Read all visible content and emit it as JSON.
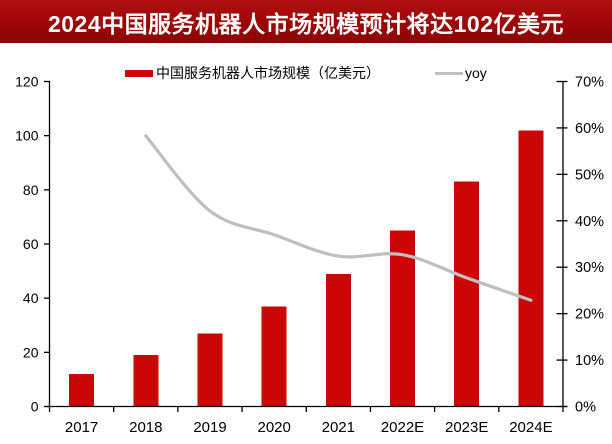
{
  "banner": {
    "title": "2024中国服务机器人市场规模预计将达102亿美元"
  },
  "legend": {
    "items": [
      {
        "label": "中国服务机器人市场规模（亿美元）",
        "swatch": "bar-swatch",
        "color": "#CC0606"
      },
      {
        "label": "yoy",
        "swatch": "line-swatch",
        "color": "#BFBFBF"
      }
    ]
  },
  "chart_data": {
    "type": "combo",
    "title": "2024中国服务机器人市场规模预计将达102亿美元",
    "categories": [
      "2017",
      "2018",
      "2019",
      "2020",
      "2021",
      "2022E",
      "2023E",
      "2024E"
    ],
    "series": [
      {
        "name": "中国服务机器人市场规模（亿美元）",
        "type": "bar",
        "axis": "left",
        "color": "#CC0606",
        "values": [
          12,
          19,
          27,
          37,
          49,
          65,
          83,
          102
        ]
      },
      {
        "name": "yoy",
        "type": "line",
        "axis": "right",
        "color": "#BFBFBF",
        "unit": "%",
        "values": [
          null,
          58.3,
          42.1,
          37.0,
          32.4,
          32.7,
          27.7,
          22.9
        ]
      }
    ],
    "left_axis": {
      "min": 0,
      "max": 120,
      "step": 20,
      "tick_labels": [
        "0",
        "20",
        "40",
        "60",
        "80",
        "100",
        "120"
      ]
    },
    "right_axis": {
      "min": 0,
      "max": 70,
      "step": 10,
      "tick_labels": [
        "0%",
        "10%",
        "20%",
        "30%",
        "40%",
        "50%",
        "60%",
        "70%"
      ]
    },
    "grid": false,
    "legend_position": "top",
    "colors": {
      "bar": "#CC0606",
      "line": "#BFBFBF",
      "banner_bg": "#A00707",
      "axis": "#000000",
      "title_text": "#FFFFFF"
    }
  }
}
